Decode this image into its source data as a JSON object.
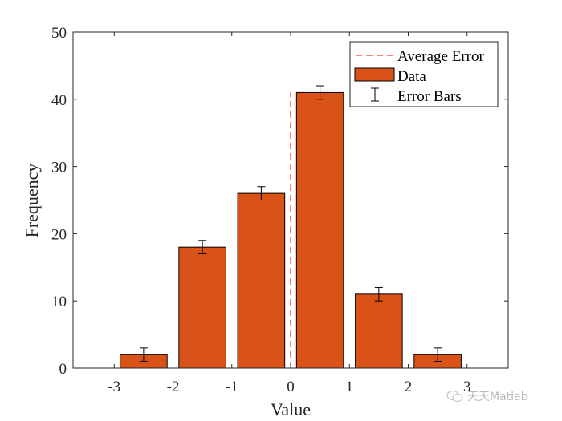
{
  "chart_data": {
    "type": "bar",
    "title": "",
    "xlabel": "Value",
    "ylabel": "Frequency",
    "xlim": [
      -3.7,
      3.7
    ],
    "ylim": [
      0,
      50
    ],
    "xticks": [
      -3,
      -2,
      -1,
      0,
      1,
      2,
      3
    ],
    "yticks": [
      0,
      10,
      20,
      30,
      40,
      50
    ],
    "grid": false,
    "legend_position": "northeast",
    "categories": [
      -2.5,
      -1.5,
      -0.5,
      0.5,
      1.5,
      2.5
    ],
    "series": [
      {
        "name": "Data",
        "type": "bar",
        "color": "#D95319",
        "bar_width": 0.8,
        "values": [
          2,
          18,
          26,
          41,
          11,
          2
        ]
      },
      {
        "name": "Error Bars",
        "type": "errorbar",
        "color": "#000000",
        "x": [
          -2.5,
          -1.5,
          -0.5,
          0.5,
          1.5,
          2.5
        ],
        "y": [
          2,
          18,
          26,
          41,
          11,
          2
        ],
        "error": [
          1,
          1,
          1,
          1,
          1,
          1
        ]
      },
      {
        "name": "Average Error",
        "type": "line",
        "style": "dashed",
        "color": "#FF0000",
        "x": [
          0,
          0
        ],
        "y": [
          0,
          41
        ]
      }
    ],
    "legend": [
      "Average Error",
      "Data",
      "Error Bars"
    ]
  },
  "watermark": {
    "text": "天天Matlab",
    "icon": "wechat-icon"
  }
}
